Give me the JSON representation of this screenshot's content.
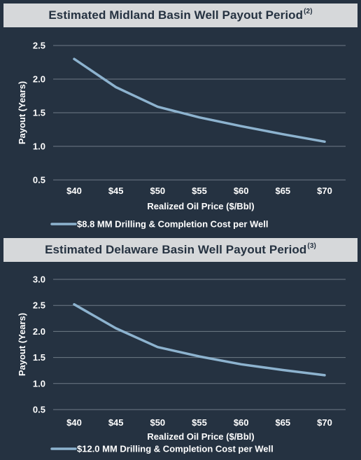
{
  "charts": [
    {
      "title": "Estimated Midland Basin Well Payout Period",
      "title_note": "(2)"
    },
    {
      "title": "Estimated Delaware Basin Well Payout Period",
      "title_note": "(3)"
    }
  ],
  "chart_data": [
    {
      "type": "line",
      "title": "Estimated Midland Basin Well Payout Period(2)",
      "xlabel": "Realized Oil Price ($/Bbl)",
      "ylabel": "Payout (Years)",
      "categories": [
        "$40",
        "$45",
        "$50",
        "$55",
        "$60",
        "$65",
        "$70"
      ],
      "x": [
        40,
        45,
        50,
        55,
        60,
        65,
        70
      ],
      "yticks": [
        "0.5",
        "1.0",
        "1.5",
        "2.0",
        "2.5"
      ],
      "ylim": [
        0.5,
        2.5
      ],
      "grid": true,
      "legend": "bottom-left",
      "colors": {
        "line": "#8db3cf",
        "grid": "#6f7b87"
      },
      "series": [
        {
          "name": "$8.8 MM Drilling & Completion Cost per Well",
          "values": [
            2.3,
            1.88,
            1.59,
            1.43,
            1.3,
            1.18,
            1.07
          ]
        }
      ]
    },
    {
      "type": "line",
      "title": "Estimated Delaware Basin Well Payout Period(3)",
      "xlabel": "Realized Oil Price ($/Bbl)",
      "ylabel": "Payout (Years)",
      "categories": [
        "$40",
        "$45",
        "$50",
        "$55",
        "$60",
        "$65",
        "$70"
      ],
      "x": [
        40,
        45,
        50,
        55,
        60,
        65,
        70
      ],
      "yticks": [
        "0.5",
        "1.0",
        "1.5",
        "2.0",
        "2.5",
        "3.0"
      ],
      "ylim": [
        0.5,
        3.0
      ],
      "grid": true,
      "legend": "bottom-left",
      "colors": {
        "line": "#8db3cf",
        "grid": "#6f7b87"
      },
      "series": [
        {
          "name": "$12.0 MM Drilling & Completion Cost per Well",
          "values": [
            2.52,
            2.06,
            1.7,
            1.52,
            1.37,
            1.26,
            1.16
          ]
        }
      ]
    }
  ]
}
